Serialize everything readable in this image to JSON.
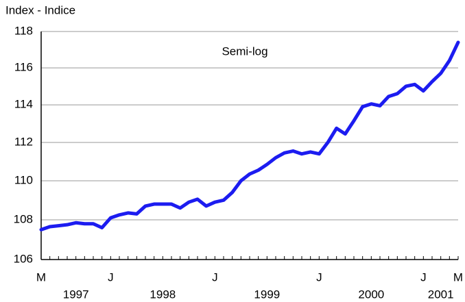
{
  "chart_data": {
    "type": "line",
    "y_axis_label": "Index - Indice",
    "annotation": "Semi-log",
    "categories": [
      "M",
      null,
      null,
      null,
      null,
      null,
      null,
      null,
      "J",
      null,
      null,
      null,
      null,
      null,
      null,
      null,
      null,
      null,
      null,
      null,
      "J",
      null,
      null,
      null,
      null,
      null,
      null,
      null,
      null,
      null,
      null,
      null,
      "J",
      null,
      null,
      null,
      null,
      null,
      null,
      null,
      null,
      null,
      null,
      null,
      "J",
      null,
      null,
      null,
      "M"
    ],
    "years": [
      "1997",
      "1998",
      "1999",
      "2000",
      "2001"
    ],
    "series": [
      {
        "color": "#1c1cf0",
        "values": [
          107.5,
          107.65,
          107.7,
          107.75,
          107.85,
          107.8,
          107.8,
          107.6,
          108.1,
          108.25,
          108.35,
          108.3,
          108.7,
          108.8,
          108.8,
          108.8,
          108.6,
          108.9,
          109.05,
          108.7,
          108.9,
          109.0,
          109.4,
          110.0,
          110.35,
          110.55,
          110.85,
          111.2,
          111.45,
          111.55,
          111.4,
          111.5,
          111.4,
          112.0,
          112.75,
          112.45,
          113.15,
          113.9,
          114.05,
          113.95,
          114.45,
          114.6,
          115.0,
          115.1,
          114.75,
          115.25,
          115.7,
          116.4,
          117.4
        ]
      }
    ],
    "ylim": [
      106,
      118
    ],
    "yticks": [
      106,
      108,
      110,
      112,
      114,
      116,
      118
    ],
    "log_scale": true,
    "grid": true
  }
}
